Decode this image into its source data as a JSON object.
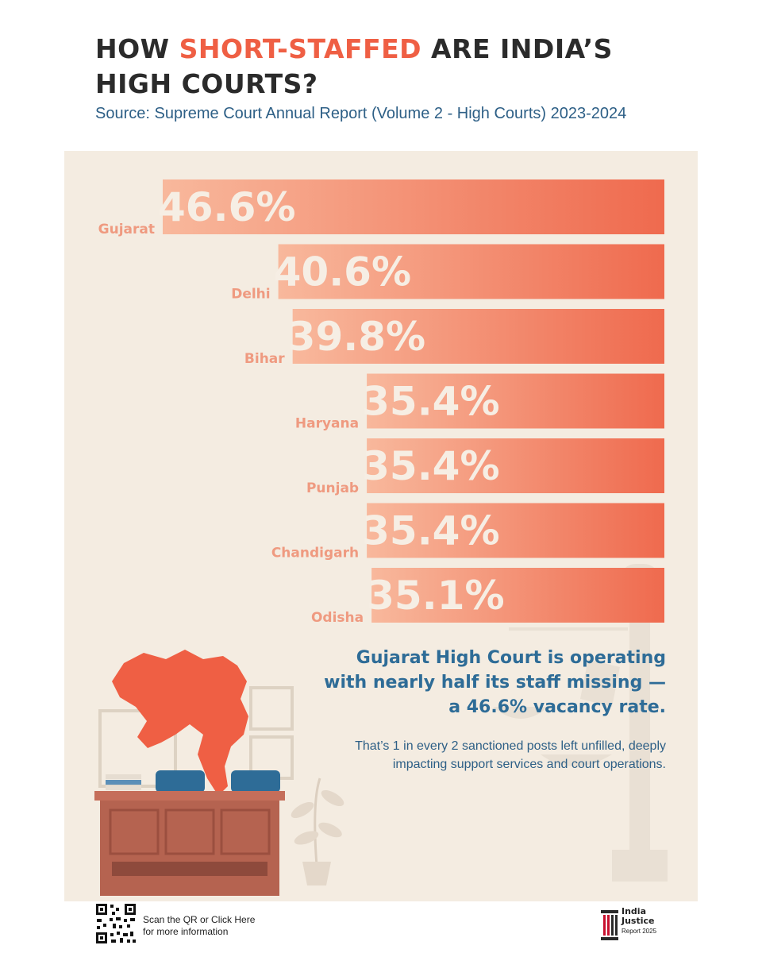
{
  "header": {
    "title_pre": "HOW ",
    "title_highlight": "SHORT-STAFFED",
    "title_post": " ARE INDIA’S HIGH COURTS?",
    "subtitle": "Source: Supreme Court Annual Report (Volume 2 - High Courts) 2023-2024"
  },
  "chart_data": {
    "type": "bar",
    "orientation": "horizontal",
    "categories": [
      "Gujarat",
      "Delhi",
      "Bihar",
      "Haryana",
      "Punjab",
      "Chandigarh",
      "Odisha"
    ],
    "values": [
      46.6,
      40.6,
      39.8,
      35.4,
      35.4,
      35.4,
      35.1
    ],
    "value_labels": [
      "46.6%",
      "40.6%",
      "39.8%",
      "35.4%",
      "35.4%",
      "35.4%",
      "35.1%"
    ],
    "grid": false
  },
  "callout": {
    "headline": "Gujarat High Court is operating with nearly half its staff missing — a 46.6% vacancy rate.",
    "body": "That’s 1 in every 2 sanctioned posts left unfilled, deeply impacting support services and court operations."
  },
  "footer": {
    "qr_text_line1": "Scan the QR or Click Here",
    "qr_text_line2": "for more information",
    "logo_line1": "India",
    "logo_line2": "Justice",
    "logo_sub": "Report 2025"
  },
  "colors": {
    "accent": "#ef5f44",
    "bar_light": "#f6b196",
    "bar_dark": "#ef6c50",
    "panel": "#f4ece1",
    "text_blue": "#2e6c97"
  }
}
